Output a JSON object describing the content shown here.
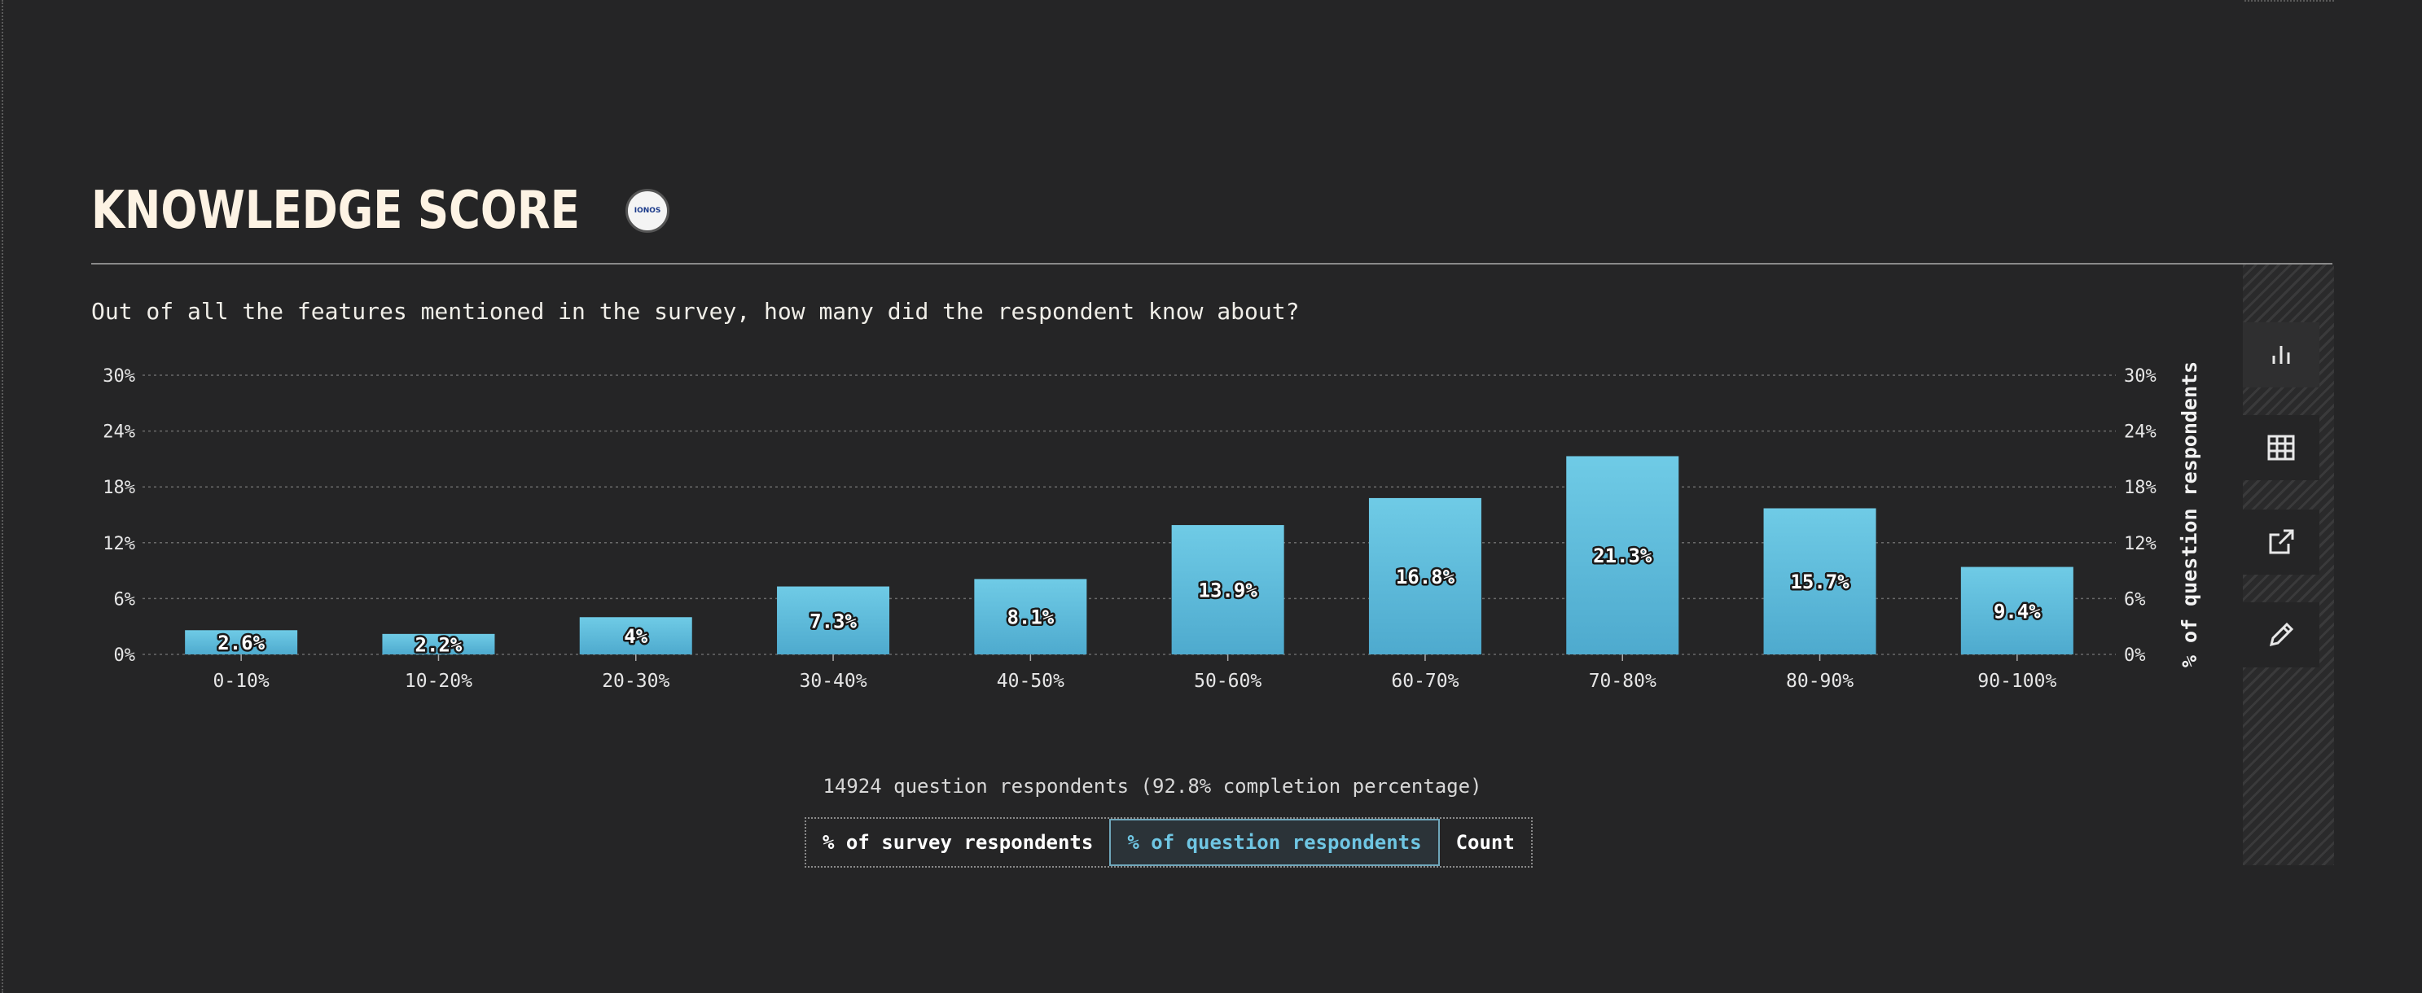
{
  "heading": {
    "title": "KNOWLEDGE SCORE",
    "sponsor_logo_text": "IONOS",
    "description": "Out of all the features mentioned in the survey, how many did the respondent know about?"
  },
  "sidebar": {
    "items": [
      {
        "icon": "bar-chart-icon",
        "active": true
      },
      {
        "icon": "table-icon",
        "active": false
      },
      {
        "icon": "external-link-icon",
        "active": false
      },
      {
        "icon": "pencil-icon",
        "active": false
      }
    ]
  },
  "footer": {
    "respondents_text": "14924 question respondents (92.8% completion percentage)",
    "units": [
      {
        "label": "% of survey respondents",
        "active": false
      },
      {
        "label": "% of question respondents",
        "active": true
      },
      {
        "label": "Count",
        "active": false
      }
    ]
  },
  "colors": {
    "background": "#252526",
    "bar_top": "#6fcbe6",
    "bar_bottom": "#4eaace",
    "title": "#fdf3e4",
    "active_unit": "#6fc6e3"
  },
  "chart_data": {
    "type": "bar",
    "categories": [
      "0-10%",
      "10-20%",
      "20-30%",
      "30-40%",
      "40-50%",
      "50-60%",
      "60-70%",
      "70-80%",
      "80-90%",
      "90-100%"
    ],
    "values": [
      2.6,
      2.2,
      4,
      7.3,
      8.1,
      13.9,
      16.8,
      21.3,
      15.7,
      9.4
    ],
    "value_labels": [
      "2.6%",
      "2.2%",
      "4%",
      "7.3%",
      "8.1%",
      "13.9%",
      "16.8%",
      "21.3%",
      "15.7%",
      "9.4%"
    ],
    "ylim": [
      0,
      30
    ],
    "yticks": [
      0,
      6,
      12,
      18,
      24,
      30
    ],
    "ytick_labels": [
      "0%",
      "6%",
      "12%",
      "18%",
      "24%",
      "30%"
    ],
    "ylabel": "% of question respondents",
    "grid": true,
    "legend": "none"
  }
}
